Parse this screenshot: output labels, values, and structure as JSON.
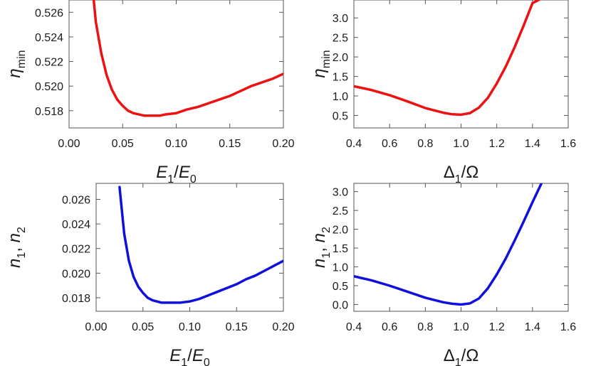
{
  "chart_data": [
    {
      "id": "p1",
      "type": "line",
      "color": "#ee1111",
      "xlim": [
        0.0,
        0.2
      ],
      "ylim": [
        0.5166,
        0.527
      ],
      "xticks": [
        0.0,
        0.05,
        0.1,
        0.15,
        0.2
      ],
      "xtick_labels": [
        "0.00",
        "0.05",
        "0.10",
        "0.15",
        "0.20"
      ],
      "yticks": [
        0.518,
        0.52,
        0.522,
        0.524,
        0.526
      ],
      "ytick_labels": [
        "0.518",
        "0.520",
        "0.522",
        "0.524",
        "0.526"
      ],
      "xlabel": {
        "main": "E",
        "sub1": "1",
        "slash": "/",
        "main2": "E",
        "sub2": "0"
      },
      "ylabel": {
        "main": "η",
        "sub": "min"
      },
      "series": [
        {
          "name": "η_min",
          "x": [
            0.023,
            0.025,
            0.03,
            0.035,
            0.04,
            0.045,
            0.05,
            0.055,
            0.06,
            0.065,
            0.07,
            0.075,
            0.08,
            0.085,
            0.09,
            0.1,
            0.11,
            0.12,
            0.13,
            0.14,
            0.15,
            0.16,
            0.17,
            0.18,
            0.19,
            0.2
          ],
          "y": [
            0.527,
            0.5252,
            0.5227,
            0.5209,
            0.5197,
            0.5189,
            0.5184,
            0.518,
            0.5178,
            0.5177,
            0.5176,
            0.5176,
            0.5176,
            0.5176,
            0.5177,
            0.5178,
            0.5181,
            0.5183,
            0.5186,
            0.5189,
            0.5192,
            0.5196,
            0.52,
            0.5203,
            0.5206,
            0.521
          ]
        }
      ]
    },
    {
      "id": "p2",
      "type": "line",
      "color": "#ee1111",
      "xlim": [
        0.4,
        1.6
      ],
      "ylim": [
        0.18,
        3.46
      ],
      "xticks": [
        0.4,
        0.6,
        0.8,
        1.0,
        1.2,
        1.4,
        1.6
      ],
      "xtick_labels": [
        "0.4",
        "0.6",
        "0.8",
        "1.0",
        "1.2",
        "1.4",
        "1.6"
      ],
      "yticks": [
        0.5,
        1.0,
        1.5,
        2.0,
        2.5,
        3.0
      ],
      "ytick_labels": [
        "0.5",
        "1.0",
        "1.5",
        "2.0",
        "2.5",
        "3.0"
      ],
      "xlabel": {
        "main": "Δ",
        "sub1": "1",
        "slash": "/",
        "main2": "Ω",
        "sub2": ""
      },
      "ylabel": {
        "main": "η",
        "sub": "min"
      },
      "series": [
        {
          "name": "η_min",
          "x": [
            0.4,
            0.5,
            0.6,
            0.7,
            0.8,
            0.9,
            0.95,
            1.0,
            1.05,
            1.1,
            1.15,
            1.2,
            1.25,
            1.3,
            1.35,
            1.4,
            1.45
          ],
          "y": [
            1.25,
            1.15,
            1.02,
            0.86,
            0.69,
            0.57,
            0.53,
            0.52,
            0.56,
            0.7,
            0.95,
            1.32,
            1.75,
            2.25,
            2.8,
            3.38,
            3.5
          ]
        }
      ]
    },
    {
      "id": "p3",
      "type": "line",
      "color": "#1010dd",
      "xlim": [
        0.0,
        0.2
      ],
      "ylim": [
        0.0169,
        0.0273
      ],
      "xticks": [
        0.0,
        0.05,
        0.1,
        0.15,
        0.2
      ],
      "xtick_labels": [
        "0.00",
        "0.05",
        "0.10",
        "0.15",
        "0.20"
      ],
      "yticks": [
        0.018,
        0.02,
        0.022,
        0.024,
        0.026
      ],
      "ytick_labels": [
        "0.018",
        "0.020",
        "0.022",
        "0.024",
        "0.026"
      ],
      "xlabel": {
        "main": "E",
        "sub1": "1",
        "slash": "/",
        "main2": "E",
        "sub2": "0"
      },
      "ylabel": {
        "main": "n",
        "sub": "1",
        "sep": ", ",
        "main2": "n",
        "sub2": "2"
      },
      "series": [
        {
          "name": "n1, n2",
          "x": [
            0.025,
            0.03,
            0.035,
            0.04,
            0.045,
            0.05,
            0.055,
            0.06,
            0.065,
            0.07,
            0.075,
            0.08,
            0.085,
            0.09,
            0.1,
            0.11,
            0.12,
            0.13,
            0.14,
            0.15,
            0.16,
            0.17,
            0.18,
            0.19,
            0.2
          ],
          "y": [
            0.027,
            0.0232,
            0.021,
            0.0197,
            0.0189,
            0.0184,
            0.018,
            0.0178,
            0.0177,
            0.0176,
            0.0176,
            0.0176,
            0.0176,
            0.0176,
            0.0177,
            0.0179,
            0.0182,
            0.0185,
            0.0188,
            0.0191,
            0.0195,
            0.0198,
            0.0202,
            0.0206,
            0.021
          ]
        }
      ]
    },
    {
      "id": "p4",
      "type": "line",
      "color": "#1010dd",
      "xlim": [
        0.4,
        1.6
      ],
      "ylim": [
        -0.18,
        3.22
      ],
      "xticks": [
        0.4,
        0.6,
        0.8,
        1.0,
        1.2,
        1.4,
        1.6
      ],
      "xtick_labels": [
        "0.4",
        "0.6",
        "0.8",
        "1.0",
        "1.2",
        "1.4",
        "1.6"
      ],
      "yticks": [
        0.0,
        0.5,
        1.0,
        1.5,
        2.0,
        2.5,
        3.0
      ],
      "ytick_labels": [
        "0.0",
        "0.5",
        "1.0",
        "1.5",
        "2.0",
        "2.5",
        "3.0"
      ],
      "xlabel": {
        "main": "Δ",
        "sub1": "1",
        "slash": "/",
        "main2": "Ω",
        "sub2": ""
      },
      "ylabel": {
        "main": "n",
        "sub": "1",
        "sep": ", ",
        "main2": "n",
        "sub2": "2"
      },
      "series": [
        {
          "name": "n1, n2",
          "x": [
            0.4,
            0.5,
            0.6,
            0.7,
            0.8,
            0.9,
            0.95,
            1.0,
            1.05,
            1.1,
            1.15,
            1.2,
            1.25,
            1.3,
            1.35,
            1.4,
            1.45
          ],
          "y": [
            0.75,
            0.64,
            0.5,
            0.34,
            0.18,
            0.06,
            0.02,
            0.0,
            0.03,
            0.16,
            0.43,
            0.8,
            1.22,
            1.7,
            2.2,
            2.72,
            3.22
          ]
        }
      ]
    }
  ]
}
